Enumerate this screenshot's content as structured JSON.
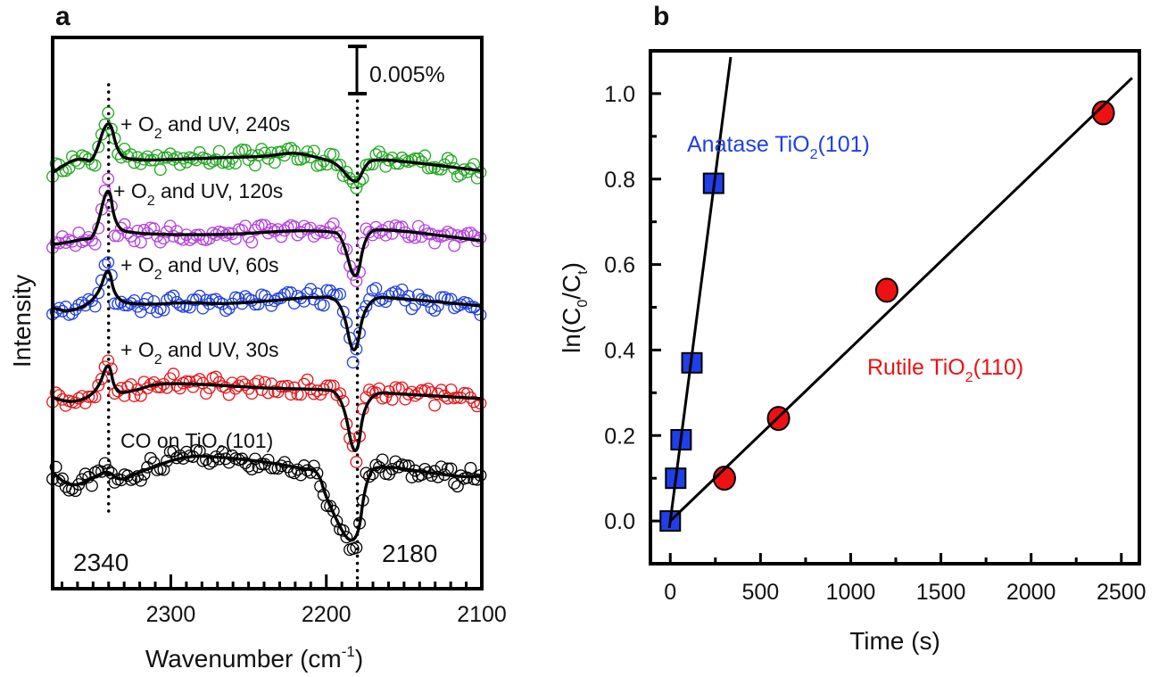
{
  "chart_data": [
    {
      "panel": "a",
      "type": "line",
      "title": "",
      "xlabel": "Wavenumber (cm",
      "xlabel_sup": "-1",
      "xlabel_close": ")",
      "ylabel": "Intensity",
      "xlim": [
        2376,
        2100
      ],
      "ylim": [
        0,
        58.3
      ],
      "y_units": "0.001 %",
      "x_ticks_major": [
        2300,
        2200,
        2100
      ],
      "x_tick_labels": [
        "2300",
        "2200",
        "2100"
      ],
      "x_minor_step": 10,
      "grid": false,
      "scale_bar": {
        "label": "0.005%",
        "value": 5
      },
      "reference_lines": [
        {
          "x": 2340,
          "label": "2340"
        },
        {
          "x": 2180,
          "label": "2180"
        }
      ],
      "series": [
        {
          "name": "CO on TiO2(101)",
          "label_main": "CO on TiO",
          "label_sub": "2",
          "label_tail": "(101)",
          "color": "#000000",
          "fit": [
            [
              2376,
              12.3
            ],
            [
              2364,
              10.6
            ],
            [
              2347,
              12.0
            ],
            [
              2340,
              12.5
            ],
            [
              2333,
              11.3
            ],
            [
              2318,
              12.5
            ],
            [
              2290,
              14.1
            ],
            [
              2267,
              13.9
            ],
            [
              2238,
              13.4
            ],
            [
              2215,
              12.7
            ],
            [
              2205,
              12.5
            ],
            [
              2200,
              9.4
            ],
            [
              2181,
              3.3
            ],
            [
              2174,
              12.5
            ],
            [
              2163,
              13.0
            ],
            [
              2135,
              12.3
            ],
            [
              2112,
              11.8
            ],
            [
              2100,
              11.9
            ]
          ]
        },
        {
          "name": "+ O2 and UV, 30s",
          "label_main": "+ O",
          "label_sub": "2",
          "label_tail": " and UV, 30s",
          "color": "#e8141a",
          "fit": [
            [
              2376,
              20.2
            ],
            [
              2362,
              19.6
            ],
            [
              2347,
              20.8
            ],
            [
              2340,
              24.5
            ],
            [
              2336,
              20.6
            ],
            [
              2324,
              20.9
            ],
            [
              2307,
              21.8
            ],
            [
              2267,
              21.5
            ],
            [
              2238,
              21.2
            ],
            [
              2206,
              21.1
            ],
            [
              2190,
              20.9
            ],
            [
              2181,
              12.5
            ],
            [
              2175,
              20.8
            ],
            [
              2152,
              20.6
            ],
            [
              2100,
              20.1
            ]
          ]
        },
        {
          "name": "+ O2 and UV, 60s",
          "label_main": "+ O",
          "label_sub": "2",
          "label_tail": " and UV, 60s",
          "color": "#1f3fe0",
          "fit": [
            [
              2376,
              29.7
            ],
            [
              2364,
              29.2
            ],
            [
              2347,
              30.7
            ],
            [
              2340,
              34.6
            ],
            [
              2336,
              30.4
            ],
            [
              2318,
              30.0
            ],
            [
              2290,
              30.3
            ],
            [
              2267,
              30.1
            ],
            [
              2238,
              30.4
            ],
            [
              2206,
              30.9
            ],
            [
              2190,
              30.7
            ],
            [
              2182,
              23.4
            ],
            [
              2175,
              30.9
            ],
            [
              2152,
              30.7
            ],
            [
              2100,
              29.9
            ]
          ]
        },
        {
          "name": "+ O2 and UV, 120s",
          "label_main": "+ O",
          "label_sub": "2",
          "label_tail": " and UV, 120s",
          "color": "#b53fe0",
          "fit": [
            [
              2376,
              36.4
            ],
            [
              2367,
              36.6
            ],
            [
              2356,
              37.0
            ],
            [
              2349,
              37.0
            ],
            [
              2340,
              43.5
            ],
            [
              2336,
              38.2
            ],
            [
              2324,
              37.5
            ],
            [
              2267,
              37.4
            ],
            [
              2221,
              37.9
            ],
            [
              2198,
              37.8
            ],
            [
              2190,
              37.5
            ],
            [
              2181,
              31.6
            ],
            [
              2175,
              37.7
            ],
            [
              2163,
              38.1
            ],
            [
              2100,
              36.8
            ]
          ]
        },
        {
          "name": "+ O2 and UV, 240s",
          "label_main": "+ O",
          "label_sub": "2",
          "label_tail": " and UV, 240s",
          "color": "#1fa81f",
          "fit": [
            [
              2376,
              44.0
            ],
            [
              2364,
              45.3
            ],
            [
              2356,
              45.5
            ],
            [
              2350,
              45.0
            ],
            [
              2340,
              50.4
            ],
            [
              2334,
              45.8
            ],
            [
              2324,
              45.3
            ],
            [
              2295,
              45.4
            ],
            [
              2267,
              45.6
            ],
            [
              2238,
              45.7
            ],
            [
              2221,
              46.2
            ],
            [
              2203,
              45.5
            ],
            [
              2193,
              45.0
            ],
            [
              2181,
              42.5
            ],
            [
              2175,
              44.8
            ],
            [
              2169,
              45.5
            ],
            [
              2140,
              45.0
            ],
            [
              2100,
              44.2
            ]
          ]
        }
      ]
    },
    {
      "panel": "b",
      "type": "scatter",
      "title": "",
      "xlabel": "Time (s)",
      "ylabel_main": "ln(C",
      "ylabel_sub0": "0",
      "ylabel_mid": "/C",
      "ylabel_sub1": "t",
      "ylabel_close": ")",
      "xlim": [
        -110,
        2600
      ],
      "ylim": [
        -0.1,
        1.1
      ],
      "x_ticks_major": [
        0,
        500,
        1000,
        1500,
        2000,
        2500
      ],
      "x_tick_labels": [
        "0",
        "500",
        "1000",
        "1500",
        "2000",
        "2500"
      ],
      "x_ticks_minor": [
        250,
        750,
        1250,
        1750,
        2250
      ],
      "y_ticks_major": [
        0.0,
        0.2,
        0.4,
        0.6,
        0.8,
        1.0
      ],
      "y_tick_labels": [
        "0.0",
        "0.2",
        "0.4",
        "0.6",
        "0.8",
        "1.0"
      ],
      "y_ticks_minor": [
        0.1,
        0.3,
        0.5,
        0.7,
        0.9
      ],
      "grid": false,
      "series": [
        {
          "name": "Anatase TiO2(101)",
          "label_main": "Anatase TiO",
          "label_sub": "2",
          "label_tail": "(101)",
          "marker": "square",
          "color": "#1f3fe8",
          "x": [
            0,
            30,
            60,
            120,
            240
          ],
          "y": [
            0.0,
            0.1,
            0.19,
            0.37,
            0.79
          ],
          "fit": {
            "slope": 0.00324,
            "intercept": 0.0,
            "x_range": [
              -5,
              335
            ]
          }
        },
        {
          "name": "Rutile TiO2(110)",
          "label_main": "Rutile TiO",
          "label_sub": "2",
          "label_tail": "(110)",
          "marker": "circle",
          "color": "#ee1111",
          "x": [
            300,
            600,
            1200,
            2400
          ],
          "y": [
            0.1,
            0.24,
            0.54,
            0.955
          ],
          "fit": {
            "slope": 0.000405,
            "intercept": 0.0,
            "x_range": [
              0,
              2560
            ]
          }
        }
      ]
    }
  ],
  "panels": {
    "a_letter": "a",
    "b_letter": "b"
  }
}
